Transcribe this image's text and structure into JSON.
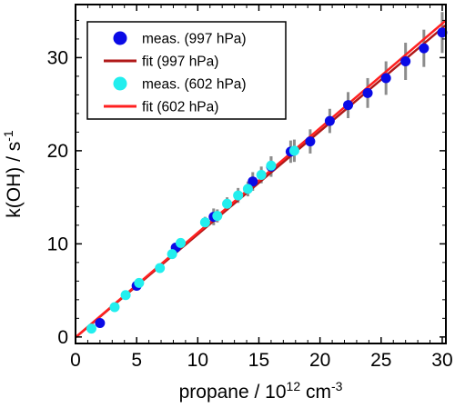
{
  "chart_data": {
    "type": "scatter",
    "xlabel": "propane / 10",
    "xlabel_sup": "12",
    "xlabel_unit": " cm",
    "xlabel_unit_sup": "-3",
    "ylabel": "k(OH) / s",
    "ylabel_sup": "-1",
    "xlim": [
      0,
      30.3
    ],
    "ylim": [
      -0.7,
      35.7
    ],
    "xticks": [
      0,
      5,
      10,
      15,
      20,
      25,
      30
    ],
    "yticks": [
      0,
      10,
      20,
      30
    ],
    "grid": false,
    "legend_position": "top-left",
    "series": [
      {
        "name": "meas. (997 hPa)",
        "kind": "points",
        "color": "#0a0ae6",
        "x": [
          2.0,
          5.0,
          8.2,
          11.3,
          14.5,
          16.0,
          17.6,
          19.2,
          20.8,
          22.3,
          23.9,
          25.4,
          27.0,
          28.5,
          30.0
        ],
        "y": [
          1.5,
          5.5,
          9.6,
          12.9,
          16.7,
          18.3,
          19.9,
          21.0,
          23.2,
          24.9,
          26.2,
          27.8,
          29.6,
          31.0,
          32.7
        ],
        "err": [
          0.3,
          0.4,
          0.5,
          0.9,
          1.0,
          1.1,
          1.2,
          1.3,
          1.3,
          1.4,
          1.6,
          1.8,
          2.0,
          2.0,
          2.2
        ]
      },
      {
        "name": "fit (997 hPa)",
        "kind": "line",
        "color": "#b01818",
        "x": [
          -0.5,
          30.3
        ],
        "y": [
          -0.6,
          33.5
        ]
      },
      {
        "name": "meas. (602 hPa)",
        "kind": "points",
        "color": "#22eeee",
        "x": [
          1.3,
          3.2,
          4.1,
          5.2,
          6.9,
          7.9,
          8.6,
          10.6,
          11.6,
          12.4,
          13.3,
          14.1,
          15.2,
          16.0,
          17.9
        ],
        "y": [
          0.9,
          3.2,
          4.5,
          5.8,
          7.4,
          8.9,
          10.1,
          12.3,
          13.0,
          14.3,
          15.2,
          15.9,
          17.4,
          18.4,
          20.0
        ],
        "err": [
          0.2,
          0.3,
          0.3,
          0.3,
          0.3,
          0.4,
          0.5,
          0.6,
          0.7,
          0.7,
          0.8,
          0.8,
          0.9,
          1.0,
          1.2
        ]
      },
      {
        "name": "fit (602 hPa)",
        "kind": "line",
        "color": "#ff2020",
        "x": [
          -0.5,
          30.3
        ],
        "y": [
          -0.6,
          34.0
        ]
      }
    ],
    "errorbar_color": "#8c8c8c"
  }
}
